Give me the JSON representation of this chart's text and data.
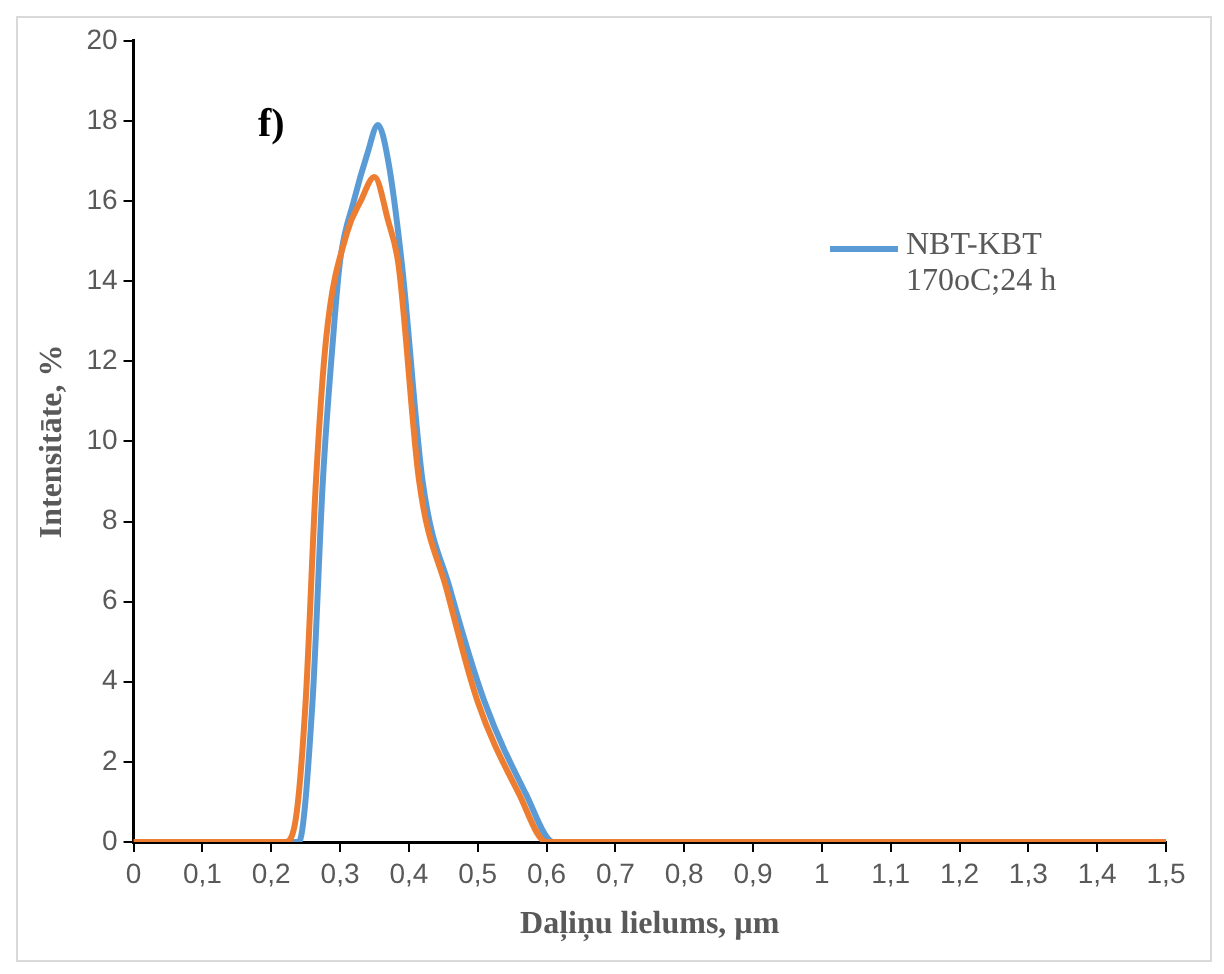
{
  "chart_data": {
    "type": "line",
    "xlabel": "Daļiņu lielums, µm",
    "ylabel": "Intensitāte, %",
    "annotations": [
      "f)"
    ],
    "xlim": [
      0,
      1.5
    ],
    "xticks": [
      0,
      {
        "value": 0.1,
        "label": "0,1"
      },
      {
        "value": 0.2,
        "label": "0,2"
      },
      {
        "value": 0.3,
        "label": "0,3"
      },
      {
        "value": 0.4,
        "label": "0,4"
      },
      {
        "value": 0.5,
        "label": "0,5"
      },
      {
        "value": 0.6,
        "label": "0,6"
      },
      {
        "value": 0.7,
        "label": "0,7"
      },
      {
        "value": 0.8,
        "label": "0,8"
      },
      {
        "value": 0.9,
        "label": "0,9"
      },
      1,
      {
        "value": 1.1,
        "label": "1,1"
      },
      {
        "value": 1.2,
        "label": "1,2"
      },
      {
        "value": 1.3,
        "label": "1,3"
      },
      {
        "value": 1.4,
        "label": "1,4"
      },
      {
        "value": 1.5,
        "label": "1,5"
      }
    ],
    "ylim": [
      0,
      20
    ],
    "yticks": [
      0,
      2,
      4,
      6,
      8,
      10,
      12,
      14,
      16,
      18,
      20
    ],
    "grid": false,
    "legend": "top right",
    "marker": "none",
    "line_style": "solid",
    "series": [
      {
        "name": "NBT-KBT 170oC;24 h",
        "color": "#5b9bd5",
        "x": [
          0,
          0.24,
          0.26,
          0.275,
          0.29,
          0.3,
          0.32,
          0.34,
          0.355,
          0.37,
          0.39,
          0.42,
          0.46,
          0.51,
          0.57,
          0.61,
          0.8
        ],
        "values": [
          0,
          0,
          3.5,
          9,
          12.6,
          14.5,
          16,
          17.2,
          17.9,
          17,
          14.4,
          9,
          6.3,
          3.5,
          1.2,
          0,
          0
        ]
      },
      {
        "color": "#ed7d31",
        "x": [
          0,
          0.22,
          0.235,
          0.25,
          0.265,
          0.28,
          0.31,
          0.33,
          0.35,
          0.37,
          0.385,
          0.415,
          0.455,
          0.5,
          0.56,
          0.6,
          0.8,
          1.0,
          1.2,
          1.5
        ],
        "values": [
          0,
          0,
          0.5,
          3.5,
          9,
          12.6,
          15.2,
          16,
          16.6,
          15.5,
          14.4,
          9,
          6.3,
          3.5,
          1.2,
          0,
          0,
          0,
          0,
          0
        ]
      }
    ]
  }
}
